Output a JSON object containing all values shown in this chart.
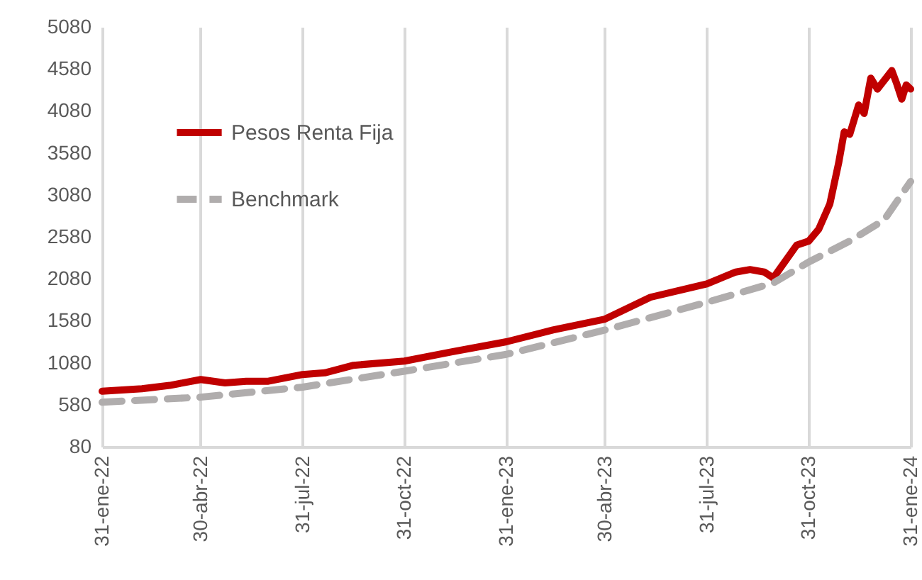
{
  "chart_data": {
    "type": "line",
    "ylim": [
      80,
      5080
    ],
    "yticks": [
      80,
      580,
      1080,
      1580,
      2080,
      2580,
      3080,
      3580,
      4080,
      4580,
      5080
    ],
    "xlim": [
      "2022-01-31",
      "2024-01-31"
    ],
    "xticks": [
      {
        "value": "2022-01-31",
        "label": "31-ene-22"
      },
      {
        "value": "2022-04-30",
        "label": "30-abr-22"
      },
      {
        "value": "2022-07-31",
        "label": "31-jul-22"
      },
      {
        "value": "2022-10-31",
        "label": "31-oct-22"
      },
      {
        "value": "2023-01-31",
        "label": "31-ene-23"
      },
      {
        "value": "2023-04-30",
        "label": "30-abr-23"
      },
      {
        "value": "2023-07-31",
        "label": "31-jul-23"
      },
      {
        "value": "2023-10-31",
        "label": "31-oct-23"
      },
      {
        "value": "2024-01-31",
        "label": "31-ene-24"
      }
    ],
    "grid": "x",
    "legend": "top left",
    "marker": "none",
    "series": [
      {
        "name": "Pesos Renta Fija",
        "color": "#c00000",
        "line_style": "solid",
        "x": [
          "2022-01-31",
          "2022-03-08",
          "2022-04-02",
          "2022-04-30",
          "2022-05-22",
          "2022-06-10",
          "2022-06-30",
          "2022-07-31",
          "2022-08-20",
          "2022-09-15",
          "2022-10-31",
          "2022-12-13",
          "2023-01-31",
          "2023-03-14",
          "2023-04-30",
          "2023-06-10",
          "2023-07-31",
          "2023-08-26",
          "2023-09-08",
          "2023-09-21",
          "2023-09-29",
          "2023-10-20",
          "2023-10-31",
          "2023-11-09",
          "2023-11-19",
          "2023-11-27",
          "2023-12-02",
          "2023-12-07",
          "2023-12-15",
          "2023-12-20",
          "2023-12-26",
          "2024-01-01",
          "2024-01-14",
          "2024-01-18",
          "2024-01-23",
          "2024-01-27",
          "2024-01-31"
        ],
        "values": [
          740,
          770,
          810,
          880,
          840,
          860,
          860,
          940,
          960,
          1050,
          1100,
          1210,
          1330,
          1470,
          1600,
          1860,
          2020,
          2160,
          2190,
          2160,
          2090,
          2480,
          2530,
          2670,
          2970,
          3460,
          3830,
          3800,
          4150,
          4050,
          4470,
          4340,
          4560,
          4420,
          4220,
          4390,
          4340
        ]
      },
      {
        "name": "Benchmark",
        "color": "#b0adad",
        "line_style": "dashed",
        "x": [
          "2022-01-31",
          "2022-04-30",
          "2022-07-31",
          "2022-10-31",
          "2023-01-31",
          "2023-04-30",
          "2023-07-31",
          "2023-09-29",
          "2023-10-31",
          "2023-12-07",
          "2024-01-07",
          "2024-01-31"
        ],
        "values": [
          610,
          670,
          790,
          980,
          1180,
          1470,
          1800,
          2030,
          2280,
          2530,
          2780,
          3240
        ]
      }
    ]
  }
}
